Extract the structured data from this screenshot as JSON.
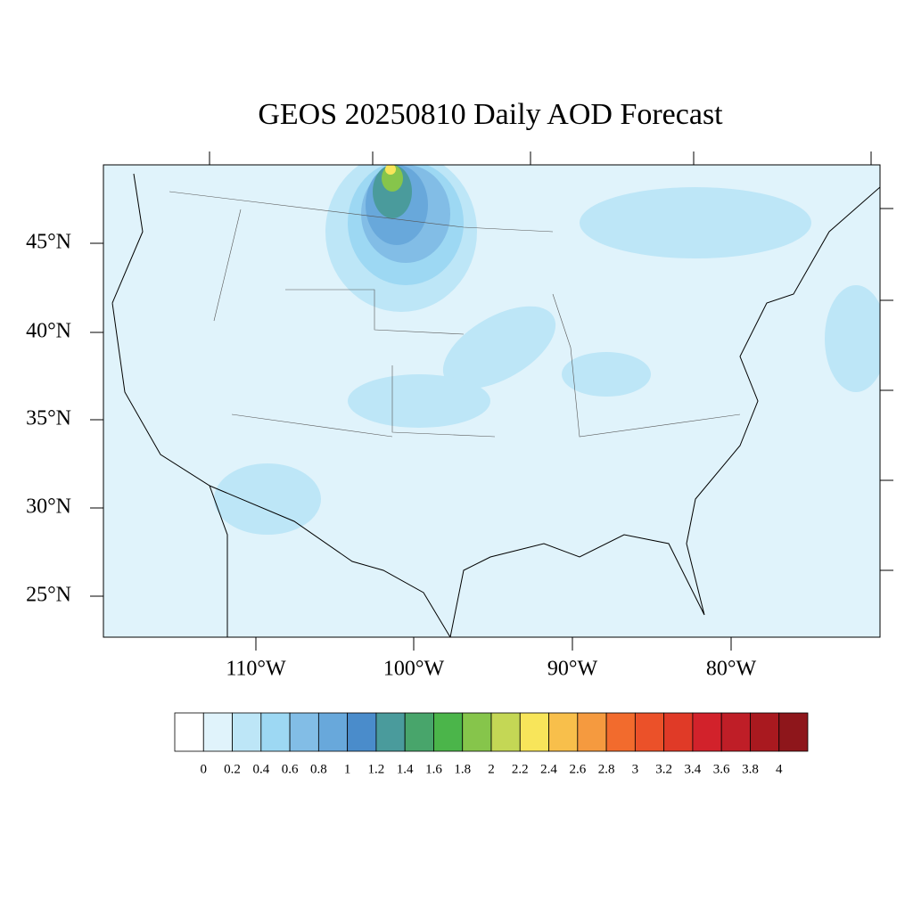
{
  "title": "GEOS 20250810 Daily AOD Forecast",
  "map": {
    "lat_labels": [
      "45°N",
      "40°N",
      "35°N",
      "30°N",
      "25°N"
    ],
    "lon_labels": [
      "110°W",
      "100°W",
      "90°W",
      "80°W"
    ]
  },
  "colorbar": {
    "levels": [
      0,
      0.2,
      0.4,
      0.6,
      0.8,
      1,
      1.2,
      1.4,
      1.6,
      1.8,
      2,
      2.2,
      2.4,
      2.6,
      2.8,
      3,
      3.2,
      3.4,
      3.6,
      3.8,
      4
    ],
    "colors": [
      "#ffffff",
      "#e0f3fb",
      "#bde6f7",
      "#9dd8f3",
      "#82bde6",
      "#68a8db",
      "#4a8ccb",
      "#4a9b9c",
      "#48a56b",
      "#4bb54a",
      "#86c54b",
      "#c4d755",
      "#f8e55a",
      "#f8bf4b",
      "#f59a3f",
      "#f26b2d",
      "#eb5129",
      "#e03a27",
      "#d2222b",
      "#bf1e27",
      "#a9191f",
      "#8e161b"
    ]
  }
}
